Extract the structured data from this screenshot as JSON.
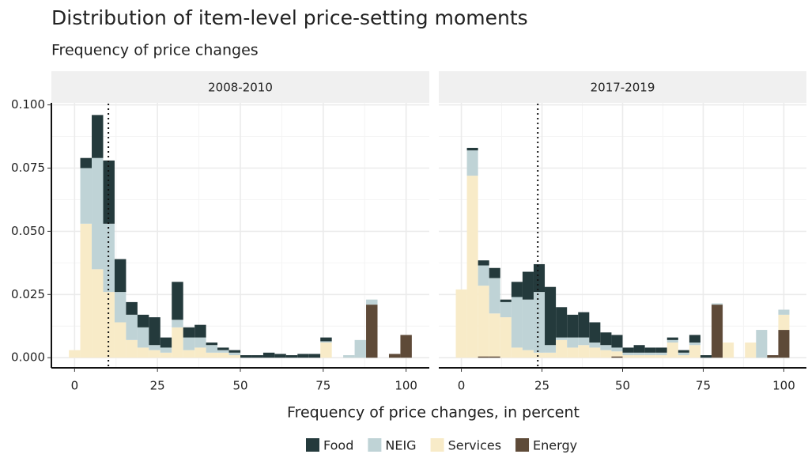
{
  "chart_data": {
    "type": "histogram",
    "title": "Distribution of item-level price-setting moments",
    "subtitle": "Frequency of price changes",
    "x_label": "Frequency of price changes, in percent",
    "panels": [
      {
        "title": "2008-2010",
        "reference_line": 10.2
      },
      {
        "title": "2017-2019",
        "reference_line": 23.7
      }
    ],
    "bins": [
      -1.72,
      1.72,
      5.17,
      8.62,
      12.07,
      15.52,
      18.97,
      22.41,
      25.86,
      29.31,
      32.76,
      36.21,
      39.66,
      43.1,
      46.55,
      50,
      53.45,
      56.9,
      60.34,
      63.79,
      67.24,
      70.69,
      74.14,
      77.59,
      81.03,
      84.48,
      87.93,
      91.38,
      94.83,
      98.28,
      101.72
    ],
    "series": [
      {
        "name": "Food",
        "color": "#243a3c",
        "values": [
          [
            0,
            0.004,
            0.017,
            0.025,
            0.013,
            0.005,
            0.005,
            0.011,
            0.004,
            0.015,
            0.004,
            0.005,
            0.001,
            0.001,
            0.001,
            0.001,
            0.001,
            0.002,
            0.0015,
            0.001,
            0.0015,
            0.0015,
            0.0015,
            0,
            0,
            0,
            0,
            0,
            0,
            0
          ],
          [
            0,
            0.001,
            0.002,
            0.004,
            0.001,
            0.006,
            0.011,
            0.011,
            0.023,
            0.012,
            0.009,
            0.01,
            0.008,
            0.005,
            0.005,
            0.002,
            0.003,
            0.002,
            0.002,
            0.001,
            0.001,
            0.003,
            0.001,
            0,
            0,
            0,
            0,
            0,
            0,
            0
          ]
        ]
      },
      {
        "name": "NEIG",
        "color": "#bfd3d6",
        "values": [
          [
            0,
            0.022,
            0.044,
            0.027,
            0.012,
            0.01,
            0.008,
            0.002,
            0.002,
            0.003,
            0.005,
            0.004,
            0.003,
            0.001,
            0.001,
            0,
            0,
            0,
            0,
            0,
            0,
            0,
            0.0005,
            0,
            0.001,
            0.007,
            0.002,
            0,
            0,
            0
          ],
          [
            0,
            0.01,
            0.008,
            0.014,
            0.006,
            0.02,
            0.02,
            0.024,
            0.003,
            0.001,
            0.004,
            0.003,
            0.002,
            0.002,
            0.0015,
            0.001,
            0.001,
            0.001,
            0.001,
            0.001,
            0.001,
            0.001,
            0,
            0.0005,
            0,
            0,
            0,
            0.011,
            0,
            0.002
          ]
        ]
      },
      {
        "name": "Services",
        "color": "#f8ebc8",
        "values": [
          [
            0.003,
            0.053,
            0.035,
            0.026,
            0.014,
            0.007,
            0.004,
            0.003,
            0.002,
            0.012,
            0.003,
            0.004,
            0.002,
            0.002,
            0.001,
            0,
            0,
            0,
            0,
            0,
            0,
            0,
            0.006,
            0,
            0,
            0,
            0,
            0,
            0,
            0
          ],
          [
            0.027,
            0.072,
            0.028,
            0.017,
            0.016,
            0.004,
            0.003,
            0.002,
            0.002,
            0.007,
            0.004,
            0.005,
            0.004,
            0.003,
            0.002,
            0.001,
            0.001,
            0.001,
            0.001,
            0.006,
            0.001,
            0.005,
            0,
            0,
            0.006,
            0,
            0.006,
            0,
            0,
            0.006
          ]
        ]
      },
      {
        "name": "Energy",
        "color": "#5e4a38",
        "values": [
          [
            0,
            0,
            0,
            0,
            0,
            0,
            0,
            0,
            0,
            0,
            0,
            0,
            0,
            0,
            0,
            0,
            0,
            0,
            0,
            0,
            0,
            0,
            0,
            0,
            0,
            0,
            0.021,
            0,
            0.0015,
            0.009
          ],
          [
            0,
            0,
            0.0005,
            0.0005,
            0,
            0,
            0,
            0,
            0,
            0,
            0,
            0,
            0,
            0,
            0.0005,
            0,
            0,
            0,
            0,
            0,
            0,
            0,
            0,
            0.021,
            0,
            0,
            0,
            0,
            0.001,
            0.011
          ]
        ]
      }
    ],
    "xlim": [
      -7,
      107
    ],
    "xticks": [
      0,
      25,
      50,
      75,
      100
    ],
    "ylim": [
      -0.004,
      0.1005
    ],
    "yticks": [
      {
        "value": 0,
        "label": "0.000"
      },
      0.025,
      {
        "value": 0.05,
        "label": "0.050"
      },
      0.075,
      {
        "value": 0.1,
        "label": "0.100"
      }
    ],
    "grid": true
  }
}
